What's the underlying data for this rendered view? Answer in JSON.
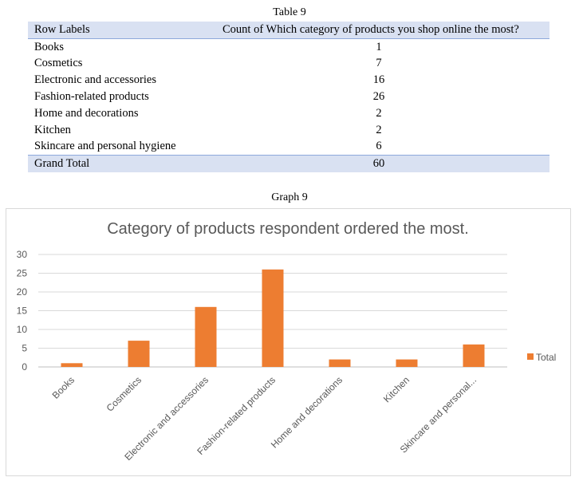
{
  "table_caption": "Table 9",
  "graph_caption": "Graph 9",
  "table": {
    "headers": [
      "Row Labels",
      "Count of Which category of products you shop online the most?"
    ],
    "rows": [
      {
        "label": "Books",
        "count": "1"
      },
      {
        "label": "Cosmetics",
        "count": "7"
      },
      {
        "label": "Electronic and accessories",
        "count": "16"
      },
      {
        "label": "Fashion-related products",
        "count": "26"
      },
      {
        "label": "Home and decorations",
        "count": "2"
      },
      {
        "label": "Kitchen",
        "count": "2"
      },
      {
        "label": "Skincare and personal hygiene",
        "count": "6"
      }
    ],
    "total_label": "Grand Total",
    "total_value": "60"
  },
  "chart_data": {
    "type": "bar",
    "title": "Category of products respondent ordered the most.",
    "categories": [
      "Books",
      "Cosmetics",
      "Electronic and accessories",
      "Fashion-related products",
      "Home and decorations",
      "Kitchen",
      "Skincare and personal..."
    ],
    "series": [
      {
        "name": "Total",
        "values": [
          1,
          7,
          16,
          26,
          2,
          2,
          6
        ],
        "color": "#ed7d31"
      }
    ],
    "ylim": [
      0,
      30
    ],
    "yticks": [
      0,
      5,
      10,
      15,
      20,
      25,
      30
    ],
    "grid": true,
    "legend": "right"
  }
}
